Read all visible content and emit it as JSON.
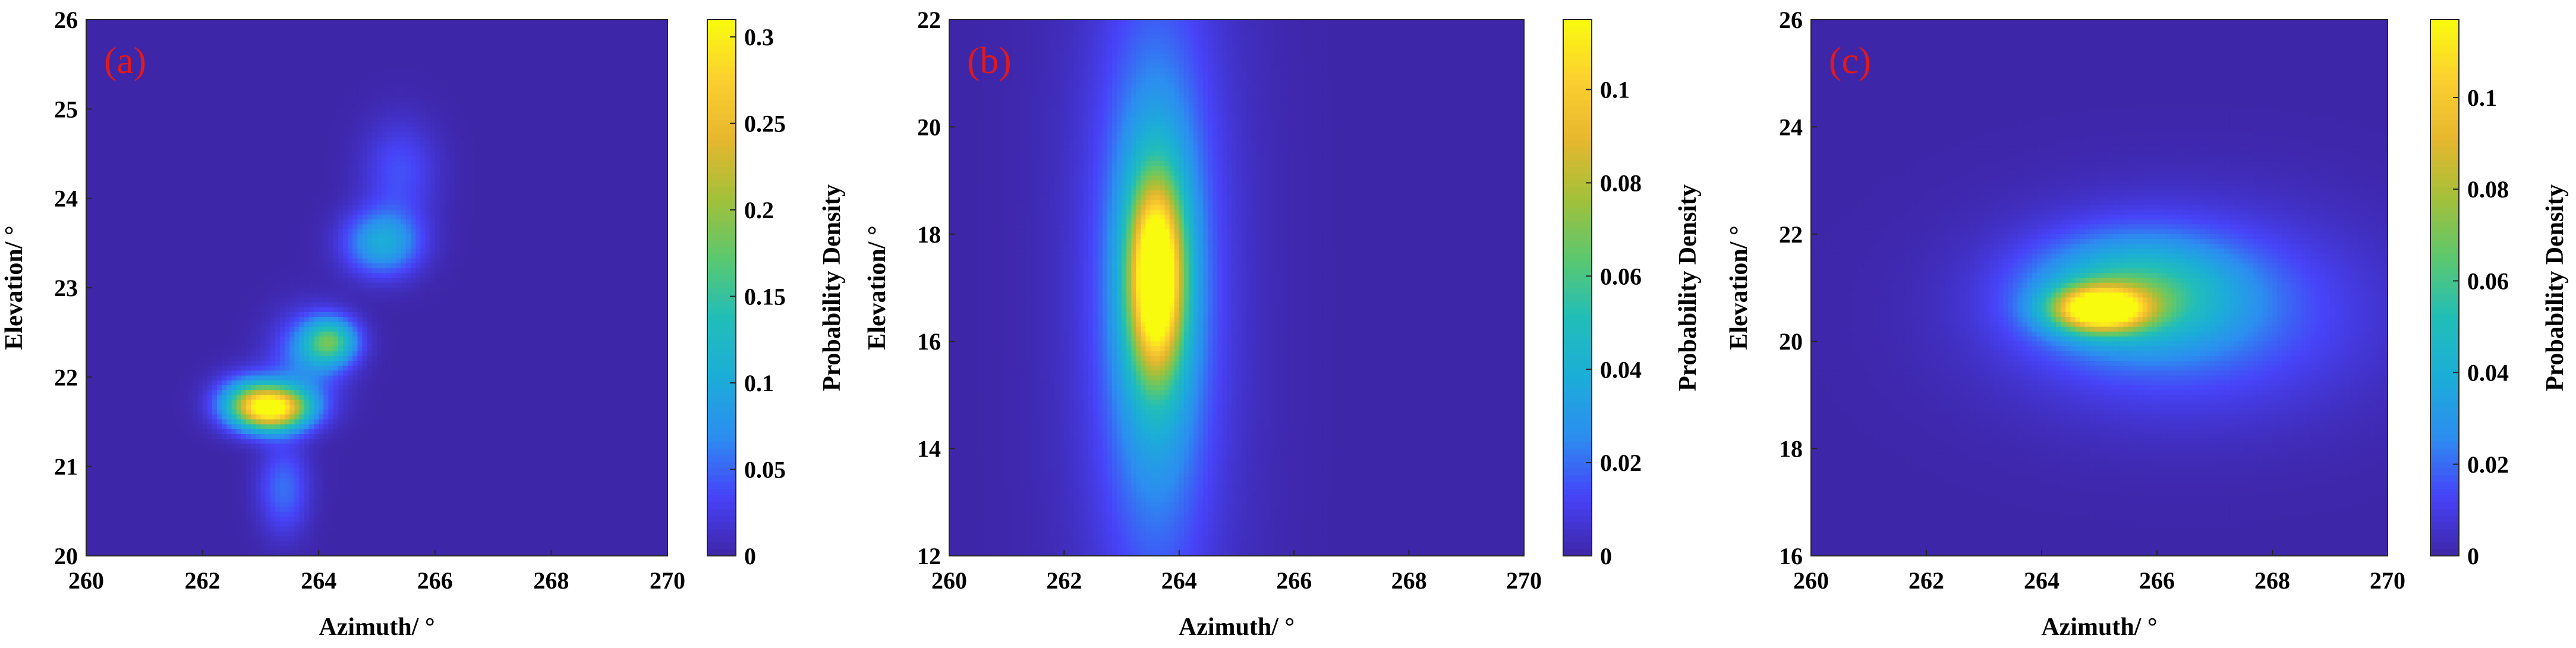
{
  "colors": {
    "colormap": [
      "#3e26a8",
      "#4743f8",
      "#2c8ef0",
      "#1cadd8",
      "#21beb8",
      "#5cc86e",
      "#a4c039",
      "#e7b72e",
      "#fcd030",
      "#f9fb0e"
    ],
    "panel_label": "#e0191c"
  },
  "chart_data": [
    {
      "type": "heatmap",
      "panel_label": "(a)",
      "xlabel": "Azimuth/ °",
      "ylabel": "Elevation/ °",
      "colorbar_label": "Probability Density",
      "xlim": [
        260,
        270
      ],
      "ylim": [
        20,
        26
      ],
      "xticks": [
        260,
        262,
        264,
        266,
        268,
        270
      ],
      "yticks": [
        20,
        21,
        22,
        23,
        24,
        25,
        26
      ],
      "clim": [
        0,
        0.31
      ],
      "colorbar_ticks": [
        {
          "value": 0,
          "label": "0"
        },
        {
          "value": 0.05,
          "label": "0.05"
        },
        {
          "value": 0.1,
          "label": "0.1"
        },
        {
          "value": 0.15,
          "label": "0.15"
        },
        {
          "value": 0.2,
          "label": "0.2"
        },
        {
          "value": 0.25,
          "label": "0.25"
        },
        {
          "value": 0.3,
          "label": "0.3"
        }
      ],
      "peaks": [
        {
          "x": 263.2,
          "y": 21.65,
          "sx": 0.45,
          "sy": 0.17,
          "amp": 0.3
        },
        {
          "x": 262.8,
          "y": 21.75,
          "sx": 0.4,
          "sy": 0.2,
          "amp": 0.08
        },
        {
          "x": 264.2,
          "y": 22.4,
          "sx": 0.32,
          "sy": 0.18,
          "amp": 0.15
        },
        {
          "x": 263.8,
          "y": 22.2,
          "sx": 0.45,
          "sy": 0.35,
          "amp": 0.06
        },
        {
          "x": 265.1,
          "y": 23.5,
          "sx": 0.45,
          "sy": 0.25,
          "amp": 0.1
        },
        {
          "x": 265.4,
          "y": 24.3,
          "sx": 0.45,
          "sy": 0.4,
          "amp": 0.04
        },
        {
          "x": 263.4,
          "y": 20.75,
          "sx": 0.3,
          "sy": 0.35,
          "amp": 0.055
        }
      ]
    },
    {
      "type": "heatmap",
      "panel_label": "(b)",
      "xlabel": "Azimuth/ °",
      "ylabel": "Elevation/ °",
      "colorbar_label": "Probability Density",
      "xlim": [
        260,
        270
      ],
      "ylim": [
        12,
        22
      ],
      "xticks": [
        260,
        262,
        264,
        266,
        268,
        270
      ],
      "yticks": [
        12,
        14,
        16,
        18,
        20,
        22
      ],
      "clim": [
        0,
        0.115
      ],
      "colorbar_ticks": [
        {
          "value": 0,
          "label": "0"
        },
        {
          "value": 0.02,
          "label": "0.02"
        },
        {
          "value": 0.04,
          "label": "0.04"
        },
        {
          "value": 0.06,
          "label": "0.06"
        },
        {
          "value": 0.08,
          "label": "0.08"
        },
        {
          "value": 0.1,
          "label": "0.1"
        }
      ],
      "peaks": [
        {
          "x": 263.6,
          "y": 17.2,
          "sx": 0.32,
          "sy": 1.2,
          "amp": 0.11
        },
        {
          "x": 263.6,
          "y": 17.0,
          "sx": 0.6,
          "sy": 3.0,
          "amp": 0.035
        },
        {
          "x": 263.6,
          "y": 17.0,
          "sx": 1.1,
          "sy": 6.0,
          "amp": 0.012
        }
      ]
    },
    {
      "type": "heatmap",
      "panel_label": "(c)",
      "xlabel": "Azimuth/ °",
      "ylabel": "Elevation/ °",
      "colorbar_label": "Probability Density",
      "xlim": [
        260,
        270
      ],
      "ylim": [
        16,
        26
      ],
      "xticks": [
        260,
        262,
        264,
        266,
        268,
        270
      ],
      "yticks": [
        16,
        18,
        20,
        22,
        24,
        26
      ],
      "clim": [
        0,
        0.117
      ],
      "colorbar_ticks": [
        {
          "value": 0,
          "label": "0"
        },
        {
          "value": 0.02,
          "label": "0.02"
        },
        {
          "value": 0.04,
          "label": "0.04"
        },
        {
          "value": 0.06,
          "label": "0.06"
        },
        {
          "value": 0.08,
          "label": "0.08"
        },
        {
          "value": 0.1,
          "label": "0.1"
        }
      ],
      "peaks": [
        {
          "x": 265.0,
          "y": 20.6,
          "sx": 0.55,
          "sy": 0.28,
          "amp": 0.11
        },
        {
          "x": 265.6,
          "y": 20.9,
          "sx": 1.2,
          "sy": 0.7,
          "amp": 0.045
        },
        {
          "x": 266.5,
          "y": 20.5,
          "sx": 2.2,
          "sy": 1.3,
          "amp": 0.022
        }
      ]
    }
  ]
}
